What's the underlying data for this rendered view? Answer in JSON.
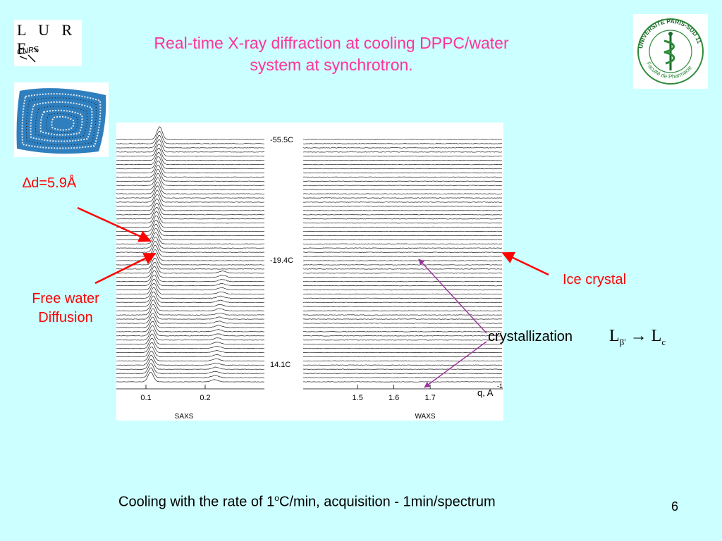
{
  "title_line1": "Real-time X-ray diffraction at cooling DPPC/water",
  "title_line2": "system at synchrotron.",
  "logos": {
    "lure_text": "L U R E",
    "lure_sub": "CNRS",
    "univ_ring_text": "UNIVERSITÉ PARIS-SUD 11",
    "univ_sub_text": "Faculté de Pharmacie"
  },
  "labels": {
    "delta_d": "∆d=5.9Å",
    "free_water_line1": "Free water",
    "free_water_line2": "Diffusion",
    "ice_crystal": "Ice crystal",
    "crystallization": "crystallization",
    "phase_from": "L",
    "phase_from_sub": "β'",
    "phase_arrow": "→",
    "phase_to": "L",
    "phase_to_sub": "c"
  },
  "chart_data": {
    "type": "line",
    "temperature_labels": [
      "-55.5C",
      "-19.4C",
      "14.1C"
    ],
    "saxs": {
      "panel_label": "SAXS",
      "ticks": [
        "0.1",
        "0.2"
      ],
      "tick_values": [
        0.1,
        0.2
      ],
      "xlim": [
        0.05,
        0.3
      ]
    },
    "waxs": {
      "panel_label": "WAXS",
      "ticks": [
        "1.5",
        "1.6",
        "1.7"
      ],
      "tick_values": [
        1.5,
        1.6,
        1.7
      ],
      "xlim": [
        1.35,
        1.9
      ],
      "axis_label": "q, A",
      "axis_label_sup": "-1"
    },
    "n_spectra": 59,
    "colors": {
      "trace": "#222222"
    }
  },
  "caption_pre": "Cooling with the rate of 1",
  "caption_sup": "o",
  "caption_post": "C/min, acquisition - 1min/spectrum",
  "page_number": "6",
  "colors": {
    "background": "#ccffff",
    "title": "#ff3399",
    "annotation": "#ff0000",
    "purple_arrow": "#993399"
  }
}
